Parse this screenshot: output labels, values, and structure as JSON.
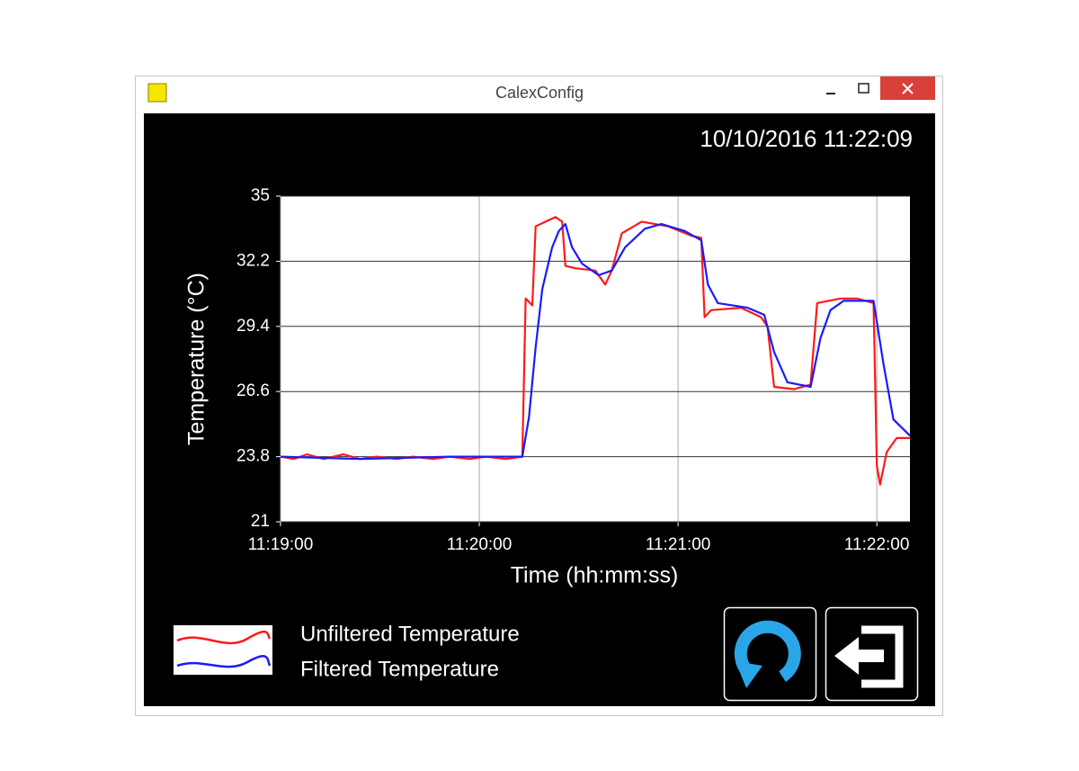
{
  "window": {
    "title": "CalexConfig"
  },
  "timestamp": "10/10/2016 11:22:09",
  "chart_data": {
    "type": "line",
    "x_label": "Time (hh:mm:ss)",
    "y_label": "Temperature (°C)",
    "xlim": [
      "11:19:00",
      "11:22:10"
    ],
    "xticks": [
      "11:19:00",
      "11:20:00",
      "11:21:00",
      "11:22:00"
    ],
    "ylim": [
      21,
      35
    ],
    "yticks": [
      21,
      23.8,
      26.6,
      29.4,
      32.2,
      35
    ],
    "grid": true,
    "series": [
      {
        "name": "Unfiltered Temperature",
        "color": "#ff1a1a",
        "x": [
          "11:19:00",
          "11:19:04",
          "11:19:08",
          "11:19:13",
          "11:19:19",
          "11:19:24",
          "11:19:29",
          "11:19:35",
          "11:19:40",
          "11:19:46",
          "11:19:51",
          "11:19:57",
          "11:20:02",
          "11:20:08",
          "11:20:13",
          "11:20:14",
          "11:20:16",
          "11:20:17",
          "11:20:20",
          "11:20:23",
          "11:20:25",
          "11:20:26",
          "11:20:29",
          "11:20:35",
          "11:20:38",
          "11:20:40",
          "11:20:43",
          "11:20:49",
          "11:20:57",
          "11:21:04",
          "11:21:07",
          "11:21:08",
          "11:21:10",
          "11:21:19",
          "11:21:25",
          "11:21:27",
          "11:21:29",
          "11:21:35",
          "11:21:40",
          "11:21:42",
          "11:21:49",
          "11:21:54",
          "11:21:59",
          "11:22:00",
          "11:22:01",
          "11:22:03",
          "11:22:06",
          "11:22:10"
        ],
        "values": [
          23.8,
          23.7,
          23.9,
          23.7,
          23.9,
          23.7,
          23.8,
          23.7,
          23.8,
          23.7,
          23.8,
          23.7,
          23.8,
          23.7,
          23.8,
          30.6,
          30.3,
          33.7,
          33.9,
          34.1,
          33.9,
          32.0,
          31.9,
          31.8,
          31.2,
          31.8,
          33.4,
          33.9,
          33.7,
          33.3,
          33.2,
          29.8,
          30.1,
          30.2,
          29.8,
          29.4,
          26.8,
          26.7,
          26.9,
          30.4,
          30.6,
          30.6,
          30.4,
          23.4,
          22.6,
          24.0,
          24.6,
          24.6
        ]
      },
      {
        "name": "Filtered Temperature",
        "color": "#1a1aff",
        "x": [
          "11:19:00",
          "11:19:24",
          "11:19:51",
          "11:20:13",
          "11:20:15",
          "11:20:17",
          "11:20:19",
          "11:20:22",
          "11:20:24",
          "11:20:26",
          "11:20:28",
          "11:20:31",
          "11:20:36",
          "11:20:40",
          "11:20:44",
          "11:20:50",
          "11:20:55",
          "11:21:02",
          "11:21:07",
          "11:21:09",
          "11:21:12",
          "11:21:21",
          "11:21:26",
          "11:21:29",
          "11:21:33",
          "11:21:40",
          "11:21:43",
          "11:21:46",
          "11:21:50",
          "11:21:59",
          "11:22:02",
          "11:22:05",
          "11:22:10"
        ],
        "values": [
          23.8,
          23.7,
          23.8,
          23.8,
          25.5,
          28.5,
          31.0,
          32.8,
          33.5,
          33.8,
          32.8,
          32.1,
          31.6,
          31.8,
          32.8,
          33.6,
          33.8,
          33.5,
          33.1,
          31.2,
          30.4,
          30.2,
          29.9,
          28.3,
          27.0,
          26.8,
          28.9,
          30.1,
          30.5,
          30.5,
          27.8,
          25.4,
          24.7
        ]
      }
    ]
  }
}
